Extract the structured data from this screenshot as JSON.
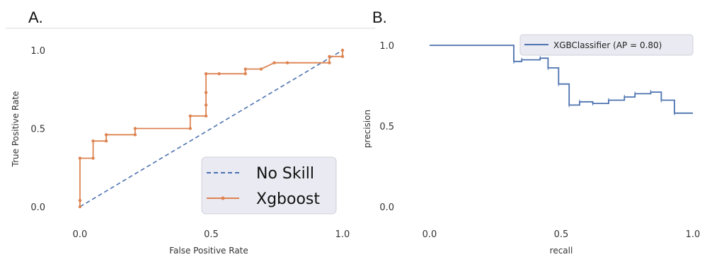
{
  "panels": {
    "a_label": "A.",
    "b_label": "B."
  },
  "colors": {
    "orange": "#dd8452",
    "blue": "#4c72b0",
    "legend_bg": "#eaeaf2",
    "divider": "#d9d9d9"
  },
  "chart_data": [
    {
      "type": "line",
      "xlabel": "False Positive Rate",
      "ylabel": "True Positive Rate",
      "xlim": [
        0.0,
        1.0
      ],
      "ylim": [
        0.0,
        1.0
      ],
      "x_ticks": [
        "0.0",
        "0.5",
        "1.0"
      ],
      "y_ticks": [
        "0.0",
        "0.5",
        "1.0"
      ],
      "grid": false,
      "legend_position": "bottom-right",
      "series": [
        {
          "name": "No Skill",
          "style": "dashed",
          "color": "#4c72b0",
          "x": [
            0.0,
            1.0
          ],
          "y": [
            0.0,
            1.0
          ]
        },
        {
          "name": "Xgboost",
          "style": "line-with-markers",
          "color": "#dd8452",
          "x": [
            0.0,
            0.0,
            0.0,
            0.05,
            0.05,
            0.1,
            0.1,
            0.21,
            0.21,
            0.42,
            0.42,
            0.48,
            0.48,
            0.48,
            0.48,
            0.53,
            0.63,
            0.63,
            0.69,
            0.74,
            0.79,
            0.95,
            0.95,
            1.0,
            1.0
          ],
          "y": [
            0.0,
            0.04,
            0.31,
            0.31,
            0.42,
            0.42,
            0.46,
            0.46,
            0.5,
            0.5,
            0.58,
            0.58,
            0.65,
            0.73,
            0.85,
            0.85,
            0.85,
            0.88,
            0.88,
            0.92,
            0.92,
            0.92,
            0.96,
            0.96,
            1.0
          ]
        }
      ]
    },
    {
      "type": "line",
      "step": true,
      "xlabel": "recall",
      "ylabel": "precision",
      "xlim": [
        0.0,
        1.0
      ],
      "ylim": [
        0.0,
        1.0
      ],
      "x_ticks": [
        "0.0",
        "0.5",
        "1.0"
      ],
      "y_ticks": [
        "0.0",
        "0.5",
        "1.0"
      ],
      "grid": false,
      "legend_position": "top-right",
      "series": [
        {
          "name": "XGBClassifier (AP = 0.80)",
          "color": "#4c72b0",
          "recall": [
            0.0,
            0.32,
            0.32,
            0.35,
            0.35,
            0.42,
            0.42,
            0.45,
            0.45,
            0.49,
            0.49,
            0.53,
            0.53,
            0.57,
            0.57,
            0.62,
            0.62,
            0.68,
            0.68,
            0.74,
            0.74,
            0.78,
            0.78,
            0.84,
            0.84,
            0.88,
            0.88,
            0.93,
            0.93,
            1.0
          ],
          "precision": [
            1.0,
            1.0,
            0.9,
            0.9,
            0.91,
            0.91,
            0.92,
            0.92,
            0.86,
            0.86,
            0.76,
            0.76,
            0.63,
            0.63,
            0.65,
            0.65,
            0.64,
            0.64,
            0.66,
            0.66,
            0.68,
            0.68,
            0.7,
            0.7,
            0.71,
            0.71,
            0.66,
            0.66,
            0.58,
            0.58
          ]
        }
      ]
    }
  ]
}
